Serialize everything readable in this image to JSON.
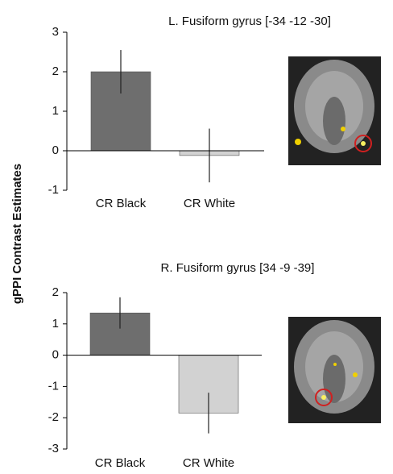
{
  "chart_data": [
    {
      "type": "bar",
      "title": "L. Fusiform gyrus [-34 -12 -30]",
      "ylabel": "gPPI Contrast Estimates",
      "categories": [
        "CR Black",
        "CR White"
      ],
      "values": [
        2.0,
        -0.12
      ],
      "errors": [
        0.55,
        0.68
      ],
      "colors": [
        "#6e6e6e",
        "#d2d2d2"
      ],
      "ylim": [
        -1,
        3
      ],
      "yticks": [
        -1,
        0,
        1,
        2,
        3
      ]
    },
    {
      "type": "bar",
      "title": "R. Fusiform gyrus [34 -9 -39]",
      "categories": [
        "CR Black",
        "CR White"
      ],
      "values": [
        1.35,
        -1.85
      ],
      "errors": [
        0.5,
        0.65
      ],
      "colors": [
        "#6e6e6e",
        "#d2d2d2"
      ],
      "ylim": [
        -3,
        2
      ],
      "yticks": [
        -3,
        -2,
        -1,
        0,
        1,
        2
      ]
    }
  ]
}
